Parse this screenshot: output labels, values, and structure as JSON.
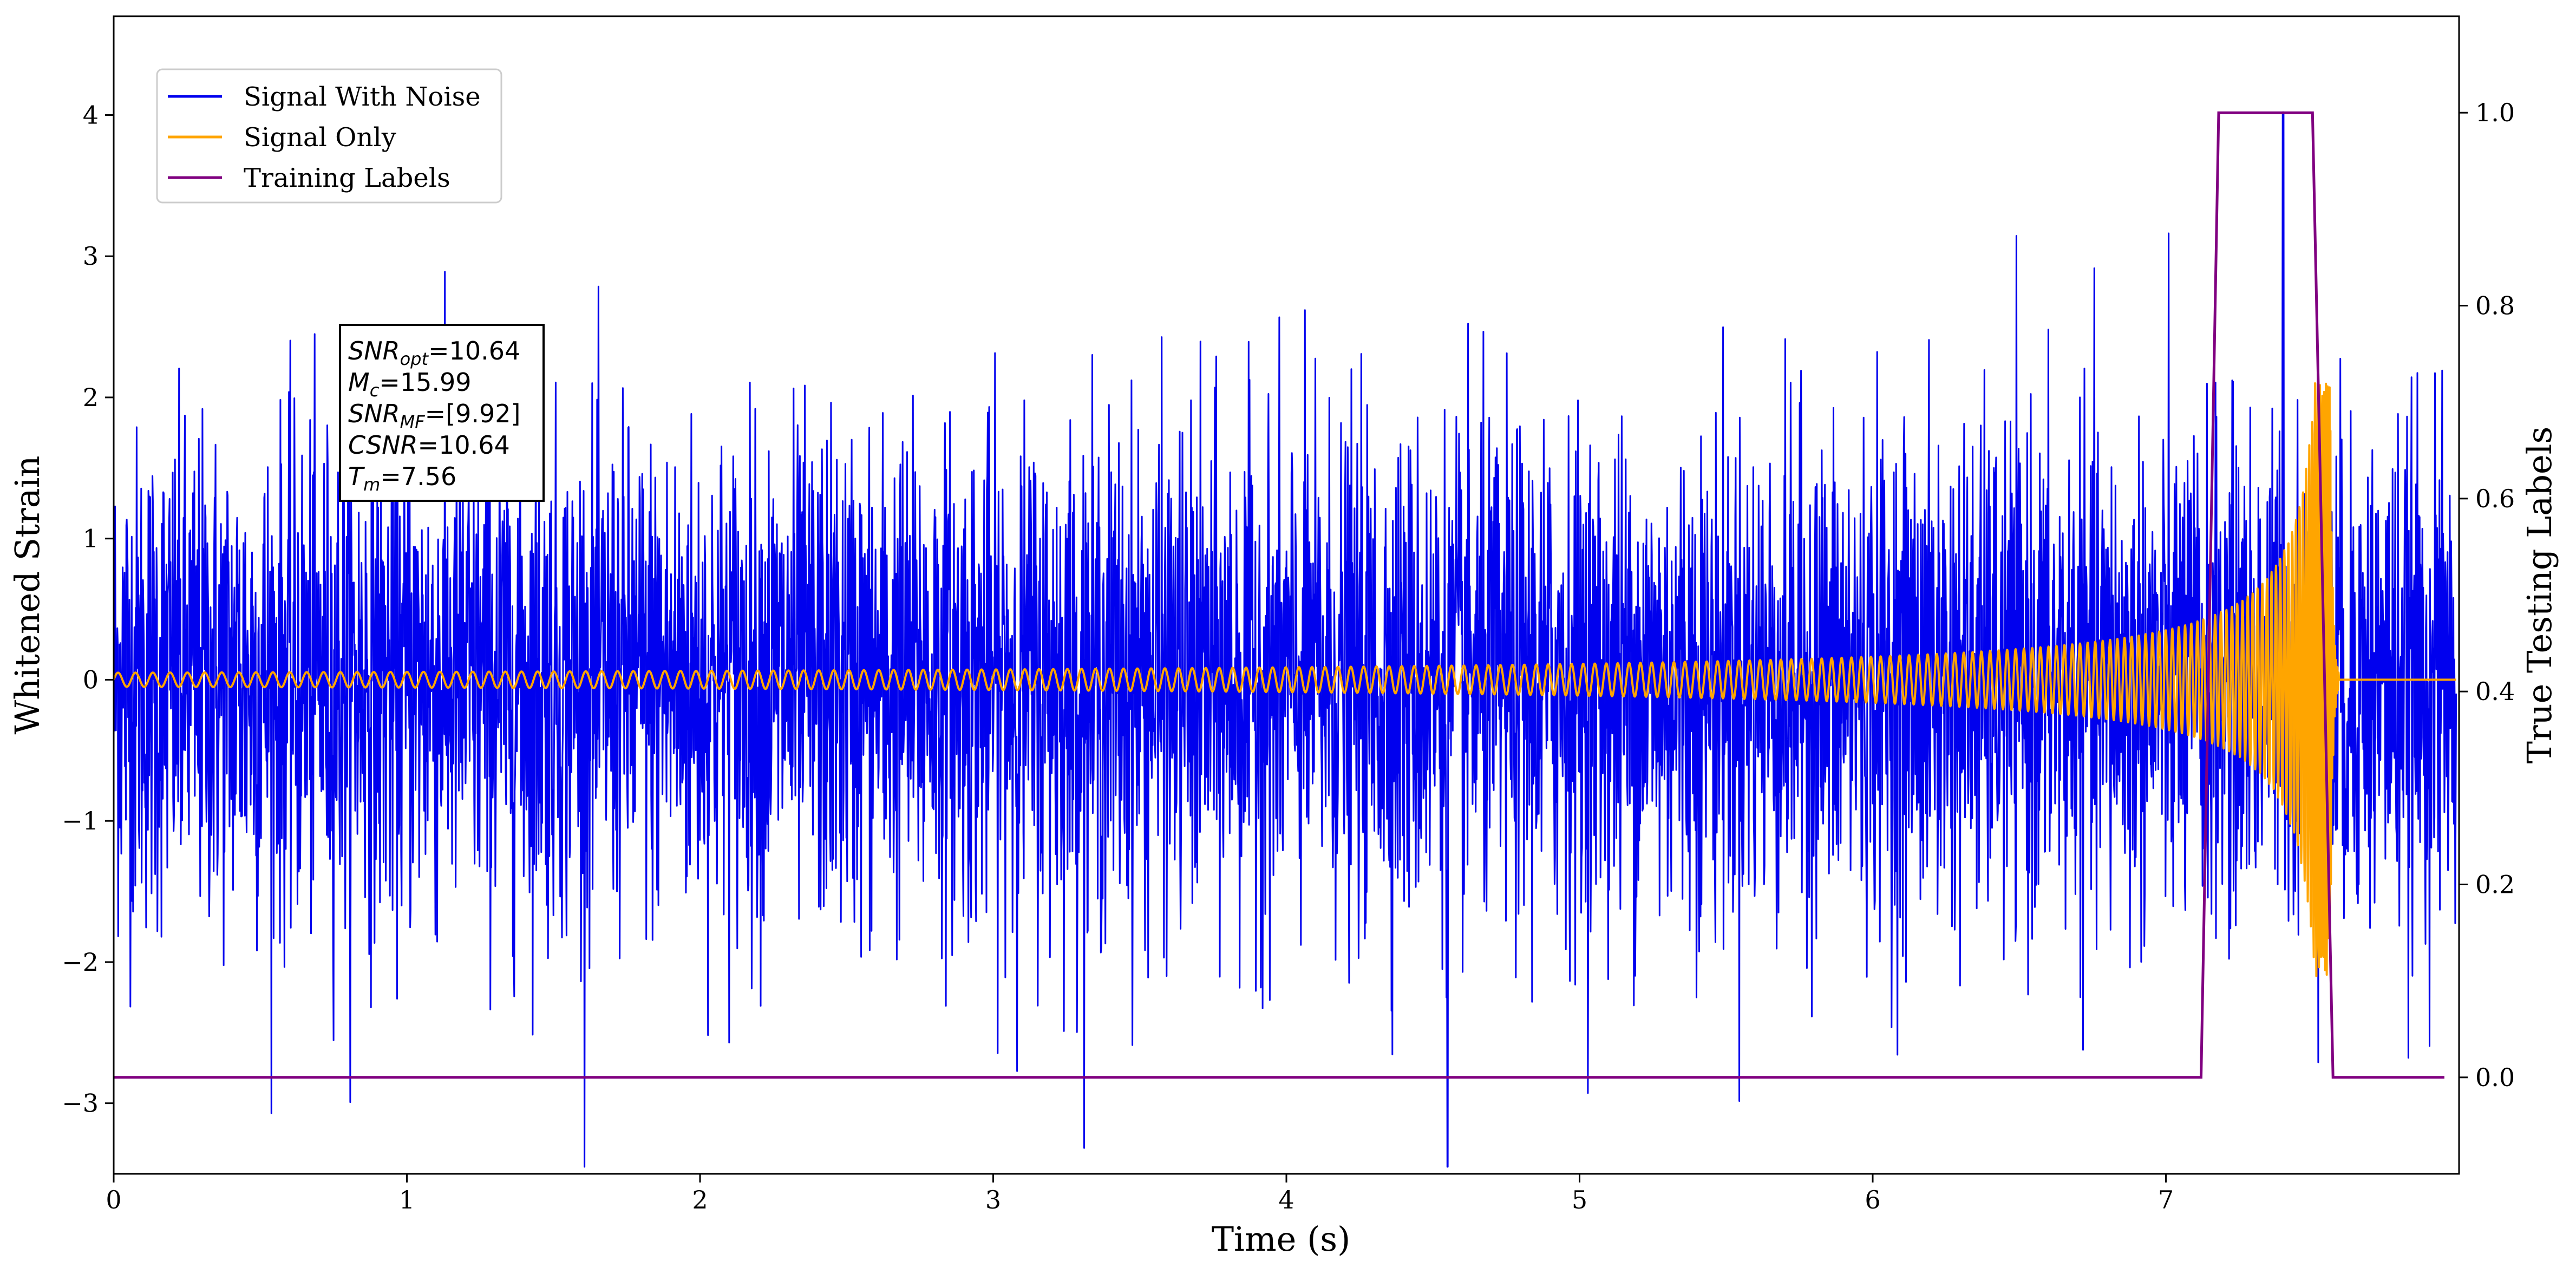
{
  "chart_data": {
    "type": "line",
    "xlabel": "Time (s)",
    "ylabel": "Whitened Strain",
    "y2label": "True Testing Labels",
    "xlim": [
      0,
      8.0
    ],
    "ylim": [
      -3.5,
      4.7
    ],
    "y2lim": [
      -0.1,
      1.1
    ],
    "x_ticks": [
      "0",
      "1",
      "2",
      "3",
      "4",
      "5",
      "6",
      "7"
    ],
    "y_ticks": [
      "−3",
      "−2",
      "−1",
      "0",
      "1",
      "2",
      "3",
      "4"
    ],
    "y2_ticks": [
      "0.0",
      "0.2",
      "0.4",
      "0.6",
      "0.8",
      "1.0"
    ],
    "grid": false,
    "legend_position": "top-left",
    "series": [
      {
        "name": "Signal With Noise",
        "color": "#0000ee",
        "axis": "left",
        "description_values": {
          "typical_amplitude": 1.5,
          "max": 4.02,
          "max_at": 7.4,
          "min": -3.45,
          "min_at": 4.55
        }
      },
      {
        "name": "Signal Only",
        "color": "#ffa500",
        "axis": "left",
        "chirp": {
          "start_amplitude": 0.05,
          "peak_amplitude": 2.1,
          "merger_time": 7.56,
          "end_time": 8.0
        }
      },
      {
        "name": "Training Labels",
        "color": "#800080",
        "axis": "right",
        "x": [
          0.0,
          7.12,
          7.18,
          7.5,
          7.57,
          7.95
        ],
        "values": [
          0.0,
          0.0,
          1.0,
          1.0,
          0.0,
          0.0
        ]
      }
    ],
    "annotation": {
      "lines": [
        {
          "symbol": "SNR",
          "sub": "opt",
          "value": "=10.64"
        },
        {
          "symbol": "M",
          "sub": "c",
          "value": "=15.99"
        },
        {
          "symbol": "SNR",
          "sub": "MF",
          "value": "=[9.92]"
        },
        {
          "symbol": "CSNR",
          "sub": "",
          "value": "=10.64"
        },
        {
          "symbol": "T",
          "sub": "m",
          "value": "=7.56"
        }
      ]
    }
  }
}
